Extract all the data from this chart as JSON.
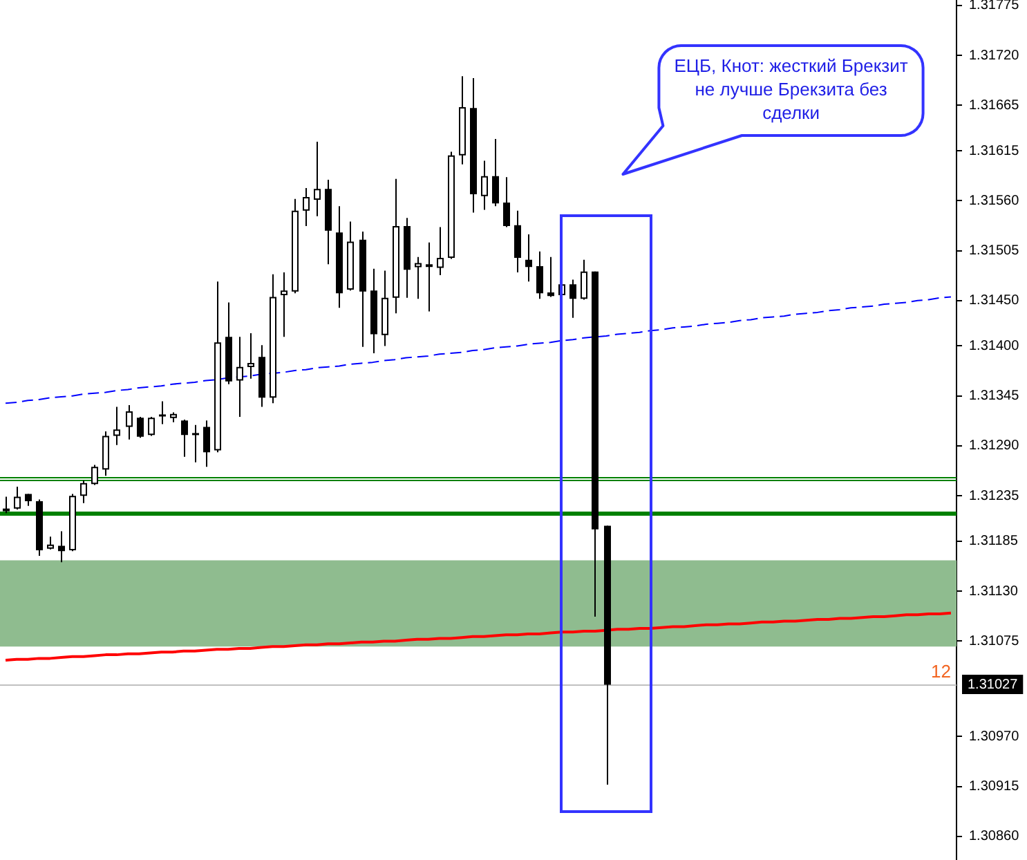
{
  "chart_data": {
    "type": "candlestick",
    "color": "#000000",
    "categories": [
      null,
      null,
      null,
      null,
      null,
      null,
      null,
      null,
      null,
      null,
      null,
      null,
      null,
      null,
      null,
      null,
      null,
      null,
      null,
      null,
      null,
      null,
      null,
      null,
      null,
      null,
      null,
      null,
      null,
      null,
      null,
      null,
      null,
      null,
      null,
      null,
      null,
      null,
      null,
      null,
      null,
      null,
      null,
      null,
      null,
      null,
      null,
      null,
      null,
      null,
      null,
      null,
      null,
      null,
      null,
      null,
      null,
      null,
      null,
      null,
      null,
      null,
      null,
      null,
      null,
      null,
      null,
      null,
      null,
      null,
      null,
      null,
      null,
      null,
      null,
      null,
      null,
      null,
      null,
      null,
      null,
      null,
      null,
      null,
      null,
      null
    ],
    "ohlc": [
      [
        1.31221,
        1.31234,
        1.31216,
        1.31218
      ],
      [
        1.31221,
        1.31245,
        1.3122,
        1.31234
      ],
      [
        1.31237,
        1.31237,
        1.31224,
        1.31229
      ],
      [
        1.31229,
        1.31231,
        1.31169,
        1.31175
      ],
      [
        1.31177,
        1.3119,
        1.31176,
        1.31181
      ],
      [
        1.3118,
        1.31196,
        1.31162,
        1.31174
      ],
      [
        1.31175,
        1.31237,
        1.31174,
        1.31235
      ],
      [
        1.31235,
        1.31252,
        1.31227,
        1.31249
      ],
      [
        1.31248,
        1.31269,
        1.31247,
        1.31267
      ],
      [
        1.31264,
        1.31306,
        1.31257,
        1.31301
      ],
      [
        1.31301,
        1.31333,
        1.31291,
        1.31308
      ],
      [
        1.31311,
        1.31335,
        1.31297,
        1.31328
      ],
      [
        1.31321,
        1.31322,
        1.31299,
        1.313
      ],
      [
        1.31302,
        1.31322,
        1.31301,
        1.31321
      ],
      [
        1.31324,
        1.31339,
        1.31314,
        1.31323
      ],
      [
        1.31322,
        1.31327,
        1.31316,
        1.31324
      ],
      [
        1.31318,
        1.31319,
        1.31278,
        1.31302
      ],
      [
        1.31304,
        1.31313,
        1.31272,
        1.31302
      ],
      [
        1.31311,
        1.31318,
        1.31267,
        1.31283
      ],
      [
        1.31285,
        1.31471,
        1.31283,
        1.31404
      ],
      [
        1.3141,
        1.31448,
        1.31358,
        1.31361
      ],
      [
        1.31362,
        1.3141,
        1.31322,
        1.31377
      ],
      [
        1.31377,
        1.31414,
        1.31364,
        1.31381
      ],
      [
        1.31388,
        1.31401,
        1.31333,
        1.31343
      ],
      [
        1.31343,
        1.31479,
        1.31337,
        1.31454
      ],
      [
        1.31456,
        1.31481,
        1.3141,
        1.31461
      ],
      [
        1.3146,
        1.31562,
        1.31458,
        1.31549
      ],
      [
        1.31549,
        1.31574,
        1.31532,
        1.31564
      ],
      [
        1.31561,
        1.31625,
        1.31543,
        1.31573
      ],
      [
        1.31573,
        1.31583,
        1.3149,
        1.31527
      ],
      [
        1.31525,
        1.31554,
        1.31442,
        1.31458
      ],
      [
        1.31462,
        1.31537,
        1.31461,
        1.31515
      ],
      [
        1.31517,
        1.31526,
        1.31399,
        1.3146
      ],
      [
        1.31461,
        1.31485,
        1.31392,
        1.31413
      ],
      [
        1.31412,
        1.31483,
        1.314,
        1.31453
      ],
      [
        1.31453,
        1.31584,
        1.31436,
        1.31532
      ],
      [
        1.31532,
        1.31541,
        1.31453,
        1.31484
      ],
      [
        1.31487,
        1.31498,
        1.31452,
        1.31491
      ],
      [
        1.3149,
        1.31514,
        1.31438,
        1.31487
      ],
      [
        1.31486,
        1.31531,
        1.31478,
        1.31497
      ],
      [
        1.31497,
        1.31614,
        1.31496,
        1.3161
      ],
      [
        1.3161,
        1.31697,
        1.316,
        1.31663
      ],
      [
        1.31662,
        1.31695,
        1.31547,
        1.31567
      ],
      [
        1.31565,
        1.31604,
        1.3155,
        1.31587
      ],
      [
        1.31587,
        1.31628,
        1.31554,
        1.31557
      ],
      [
        1.31558,
        1.31586,
        1.31531,
        1.31532
      ],
      [
        1.31533,
        1.31549,
        1.31481,
        1.31497
      ],
      [
        1.31495,
        1.31523,
        1.31471,
        1.31487
      ],
      [
        1.31488,
        1.31504,
        1.31452,
        1.31458
      ],
      [
        1.31459,
        1.31498,
        1.31454,
        1.31455
      ],
      [
        1.31456,
        1.31469,
        1.31455,
        1.31468
      ],
      [
        1.31468,
        1.31473,
        1.31431,
        1.31452
      ],
      [
        1.31452,
        1.31495,
        1.31451,
        1.31482
      ],
      [
        1.31482,
        1.31482,
        1.31102,
        1.31198
      ],
      [
        1.31202,
        1.31202,
        1.30917,
        1.31027
      ],
      null,
      null,
      null,
      null,
      null,
      null,
      null,
      null,
      null,
      null,
      null,
      null,
      null,
      null,
      null,
      null,
      null,
      null,
      null,
      null,
      null,
      null,
      null,
      null,
      null,
      null,
      null,
      null,
      null,
      null,
      null
    ],
    "series": [
      {
        "type": "line",
        "color": "#0000ff",
        "line_style": "dashed",
        "values": [
          1.31337,
          1.31338,
          1.3134,
          1.31341,
          1.31343,
          1.31344,
          1.31345,
          1.31347,
          1.31348,
          1.31349,
          1.31351,
          1.31352,
          1.31354,
          1.31355,
          1.31356,
          1.31358,
          1.31359,
          1.3136,
          1.31362,
          1.31363,
          1.31365,
          1.31366,
          1.31367,
          1.31369,
          1.3137,
          1.31371,
          1.31373,
          1.31374,
          1.31376,
          1.31377,
          1.31378,
          1.3138,
          1.31381,
          1.31382,
          1.31384,
          1.31385,
          1.31387,
          1.31388,
          1.31389,
          1.31391,
          1.31392,
          1.31393,
          1.31395,
          1.31396,
          1.31398,
          1.31399,
          1.314,
          1.31402,
          1.31403,
          1.31404,
          1.31406,
          1.31407,
          1.31409,
          1.3141,
          1.31411,
          1.31413,
          1.31414,
          1.31415,
          1.31417,
          1.31418,
          1.3142,
          1.31421,
          1.31422,
          1.31424,
          1.31425,
          1.31426,
          1.31428,
          1.31429,
          1.31431,
          1.31432,
          1.31433,
          1.31435,
          1.31436,
          1.31437,
          1.31439,
          1.3144,
          1.31442,
          1.31443,
          1.31444,
          1.31446,
          1.31447,
          1.31448,
          1.3145,
          1.31451,
          1.31453,
          1.31454
        ]
      },
      {
        "type": "line",
        "color": "#ff0000",
        "values": [
          1.31054,
          1.31055,
          1.31055,
          1.31056,
          1.31056,
          1.31057,
          1.31058,
          1.31058,
          1.31059,
          1.3106,
          1.3106,
          1.31061,
          1.31061,
          1.31062,
          1.31063,
          1.31063,
          1.31064,
          1.31064,
          1.31065,
          1.31066,
          1.31066,
          1.31067,
          1.31067,
          1.31068,
          1.31069,
          1.31069,
          1.3107,
          1.31071,
          1.31071,
          1.31072,
          1.31072,
          1.31073,
          1.31074,
          1.31074,
          1.31075,
          1.31075,
          1.31076,
          1.31077,
          1.31077,
          1.31078,
          1.31078,
          1.31079,
          1.3108,
          1.3108,
          1.31081,
          1.31082,
          1.31082,
          1.31083,
          1.31083,
          1.31084,
          1.31085,
          1.31085,
          1.31086,
          1.31086,
          1.31087,
          1.31088,
          1.31088,
          1.31089,
          1.31089,
          1.3109,
          1.31091,
          1.31091,
          1.31092,
          1.31093,
          1.31093,
          1.31094,
          1.31094,
          1.31095,
          1.31096,
          1.31096,
          1.31097,
          1.31097,
          1.31098,
          1.31099,
          1.31099,
          1.311,
          1.311,
          1.31101,
          1.31102,
          1.31102,
          1.31103,
          1.31104,
          1.31104,
          1.31105,
          1.31105,
          1.31106
        ]
      }
    ],
    "ylim": [
      1.30834,
      1.31781
    ],
    "yticks": [
      1.31775,
      {
        "value": 1.3172,
        "label": "1.31720"
      },
      1.31665,
      1.31615,
      {
        "value": 1.3156,
        "label": "1.31560"
      },
      1.31505,
      {
        "value": 1.3145,
        "label": "1.31450"
      },
      {
        "value": 1.314,
        "label": "1.31400"
      },
      1.31345,
      {
        "value": 1.3129,
        "label": "1.31290"
      },
      1.31235,
      1.31185,
      {
        "value": 1.3113,
        "label": "1.31130"
      },
      1.31075,
      {
        "value": 1.3097,
        "label": "1.30970"
      },
      1.30915,
      {
        "value": 1.3086,
        "label": "1.30860"
      }
    ],
    "tick_labels": "y",
    "ref_lines": [
      {
        "axis": "y",
        "value": 1.31256,
        "color": "#008000"
      },
      {
        "axis": "y",
        "value": 1.31252,
        "color": "#008000"
      },
      {
        "axis": "y",
        "value": 1.31216,
        "color": "#008000"
      },
      {
        "axis": "y",
        "value": 1.31027,
        "label": "1.31027",
        "color": "#c0c0c0"
      }
    ],
    "bands": [
      {
        "axis": "y",
        "from": 1.31069,
        "to": 1.31164,
        "color": "#8fbc8f"
      }
    ],
    "annotations": [
      "ЕЦБ, Кнот: жесткий Брекзит не лучше Брекзита без сделки",
      {
        "text": "12",
        "y": 1.31027
      }
    ]
  }
}
